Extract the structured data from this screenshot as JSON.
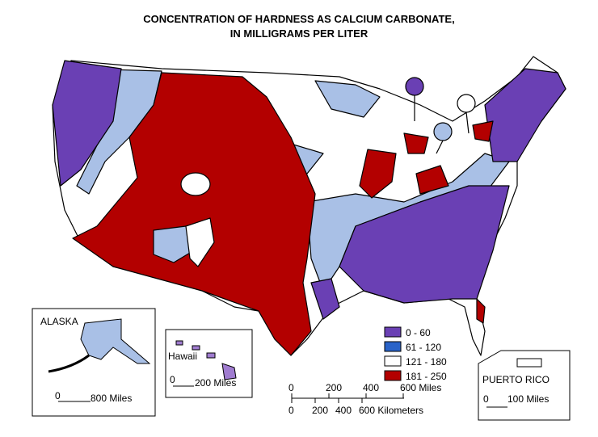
{
  "title": [
    "CONCENTRATION OF HARDNESS AS CALCIUM CARBONATE,",
    "IN MILLIGRAMS PER LITER"
  ],
  "legend": [
    {
      "label": "0 - 60",
      "color": "#6a40b4"
    },
    {
      "label": "61 - 120",
      "color": "#2a63c8"
    },
    {
      "label": "121 - 180",
      "color": "#ffffff"
    },
    {
      "label": "181 - 250",
      "color": "#b30000"
    }
  ],
  "insets": {
    "alaska": {
      "label": "ALASKA",
      "scale": [
        "0",
        "800 Miles"
      ]
    },
    "hawaii": {
      "label": "Hawaii",
      "scale": [
        "0",
        "200 Miles"
      ]
    },
    "puerto_rico": {
      "label": "PUERTO RICO",
      "scale": [
        "0",
        "100 Miles"
      ]
    }
  },
  "scale": {
    "miles": [
      "0",
      "200",
      "400",
      "600 Miles"
    ],
    "kilometers": [
      "0",
      "200",
      "400",
      "600 Kilometers"
    ]
  }
}
